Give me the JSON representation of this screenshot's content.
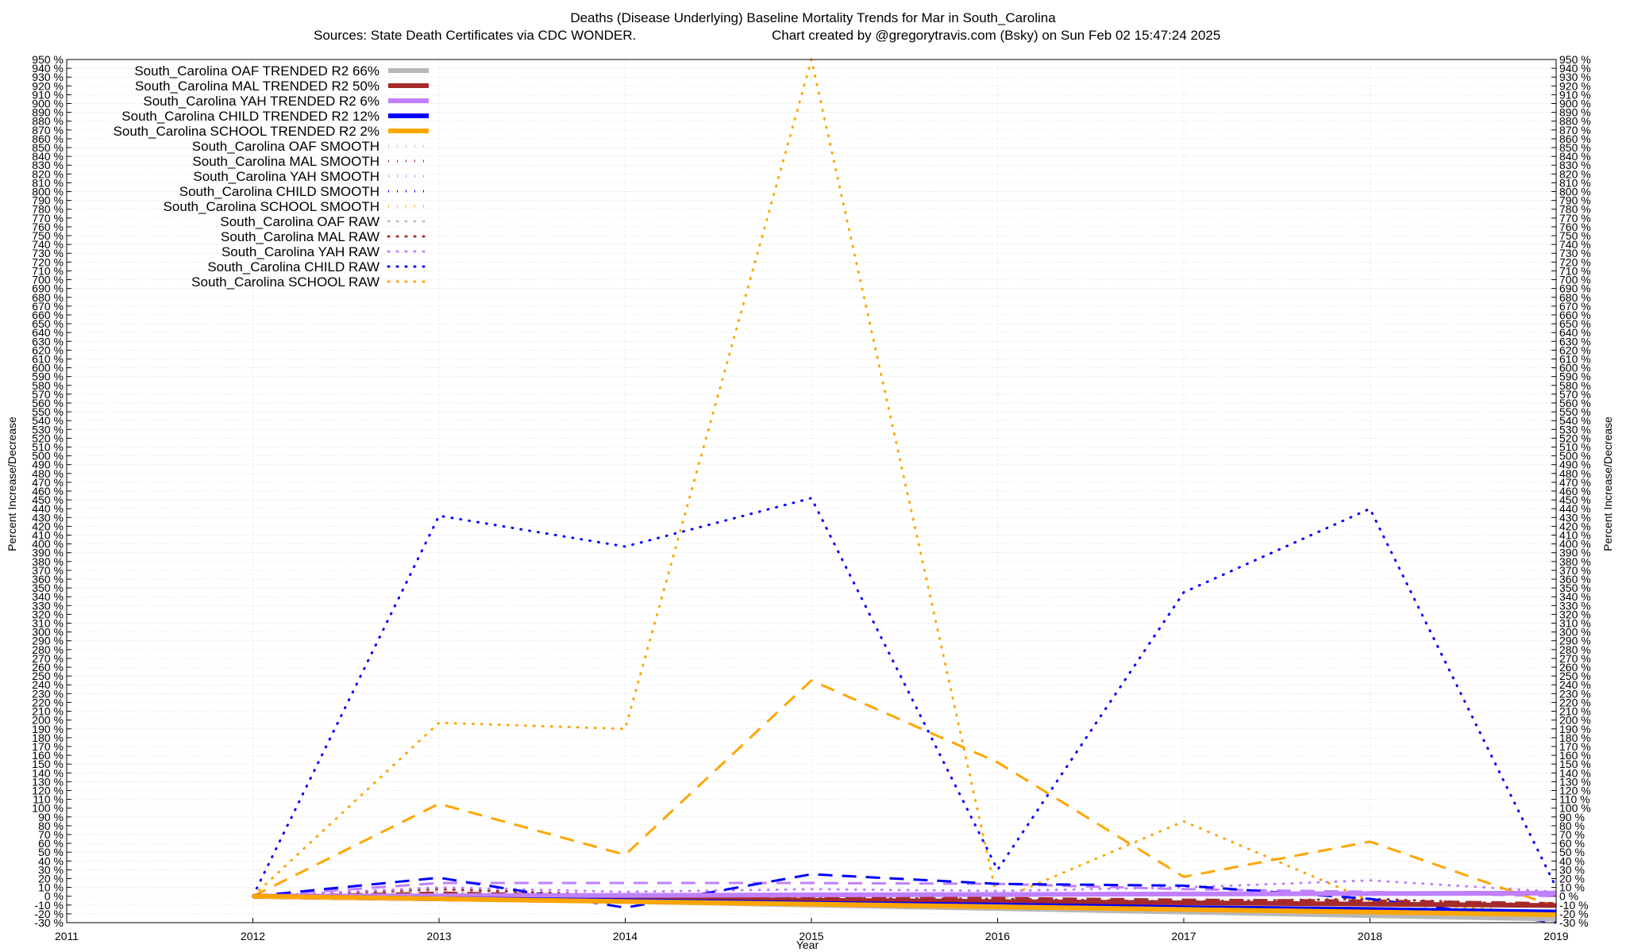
{
  "chart_data": {
    "type": "line",
    "title": "Deaths (Disease Underlying)  Baseline Mortality Trends for Mar in South_Carolina",
    "subtitle_left": "Sources: State Death Certificates via CDC WONDER.",
    "subtitle_right": "Chart created by @gregorytravis.com (Bsky) on Sun Feb 02 15:47:24 2025",
    "xlabel": "Year",
    "ylabel": "Percent Increase/Decrease",
    "y2label": "Percent Increase/Decrease",
    "xlim": [
      2011,
      2019
    ],
    "ylim": [
      -30,
      950
    ],
    "ytick_step": 10,
    "ytick_suffix": " %",
    "x_ticks": [
      "2011",
      "2012",
      "2013",
      "2014",
      "2015",
      "2016",
      "2017",
      "2018",
      "2019"
    ],
    "grid": true,
    "legend_position": "top-left",
    "x": [
      2012,
      2013,
      2014,
      2015,
      2016,
      2017,
      2018,
      2019
    ],
    "series": [
      {
        "name": "South_Carolina OAF TRENDED R2  66%",
        "color": "#b8b8b8",
        "style": "solid",
        "values": [
          0,
          -3,
          -6,
          -10,
          -14,
          -18,
          -22,
          -26
        ]
      },
      {
        "name": "South_Carolina MAL TRENDED R2  50%",
        "color": "#a52a2a",
        "style": "solid",
        "values": [
          0,
          -1.5,
          -3,
          -4.5,
          -6,
          -7.5,
          -9,
          -10.5
        ]
      },
      {
        "name": "South_Carolina YAH TRENDED R2   6%",
        "color": "#c080ff",
        "style": "solid",
        "values": [
          0,
          0.5,
          1,
          1.5,
          2,
          2.5,
          3,
          3.5
        ]
      },
      {
        "name": "South_Carolina CHILD TRENDED R2  12%",
        "color": "#0000ff",
        "style": "solid",
        "values": [
          0,
          -3,
          -5,
          -8,
          -10,
          -13,
          -15,
          -18
        ]
      },
      {
        "name": "South_Carolina SCHOOL TRENDED R2   2%",
        "color": "#ffa500",
        "style": "solid",
        "values": [
          0,
          -3,
          -6,
          -9,
          -12,
          -15,
          -18,
          -21
        ]
      },
      {
        "name": "South_Carolina OAF SMOOTH",
        "color": "#c0c0c0",
        "style": "dash",
        "values": [
          0,
          2,
          -2,
          -5,
          -8,
          -12,
          -18,
          -24
        ]
      },
      {
        "name": "South_Carolina MAL SMOOTH",
        "color": "#a52a2a",
        "style": "dash",
        "values": [
          0,
          4,
          1,
          -1,
          -2,
          -4,
          -5,
          -8
        ]
      },
      {
        "name": "South_Carolina YAH SMOOTH",
        "color": "#c080ff",
        "style": "dash",
        "values": [
          0,
          15,
          15,
          15,
          14,
          8,
          5,
          0
        ]
      },
      {
        "name": "South_Carolina CHILD SMOOTH",
        "color": "#0000ff",
        "style": "dash",
        "values": [
          0,
          21,
          -13,
          25,
          14,
          12,
          -3,
          -30
        ]
      },
      {
        "name": "South_Carolina SCHOOL SMOOTH",
        "color": "#ffa500",
        "style": "dash",
        "values": [
          0,
          105,
          47,
          245,
          152,
          22,
          62,
          -12
        ]
      },
      {
        "name": "South_Carolina OAF RAW",
        "color": "#c0c0c0",
        "style": "dot",
        "values": [
          0,
          5,
          -3,
          -8,
          -10,
          -16,
          -20,
          -28
        ]
      },
      {
        "name": "South_Carolina MAL RAW",
        "color": "#a52a2a",
        "style": "dot",
        "values": [
          0,
          8,
          1,
          -2,
          -3,
          -6,
          -3,
          -10
        ]
      },
      {
        "name": "South_Carolina YAH RAW",
        "color": "#c080ff",
        "style": "dot",
        "values": [
          0,
          10,
          5,
          8,
          6,
          10,
          18,
          5
        ]
      },
      {
        "name": "South_Carolina CHILD RAW",
        "color": "#0000ff",
        "style": "dot",
        "values": [
          0,
          432,
          397,
          452,
          30,
          345,
          440,
          10
        ]
      },
      {
        "name": "South_Carolina SCHOOL RAW",
        "color": "#ffa500",
        "style": "dot",
        "values": [
          0,
          197,
          190,
          950,
          -5,
          85,
          -5,
          -20
        ]
      }
    ]
  }
}
